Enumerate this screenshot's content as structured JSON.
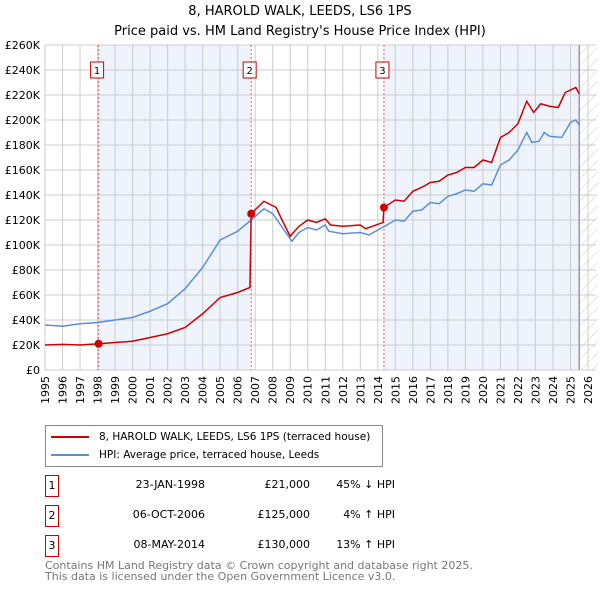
{
  "chart_data": {
    "type": "line",
    "title": "8, HAROLD WALK, LEEDS, LS6 1PS",
    "subtitle": "Price paid vs. HM Land Registry's House Price Index (HPI)",
    "xlim": [
      1995,
      2026
    ],
    "ylim": [
      0,
      260000
    ],
    "x_ticks": [
      "1995",
      "1996",
      "1997",
      "1998",
      "1999",
      "2000",
      "2001",
      "2002",
      "2003",
      "2004",
      "2005",
      "2006",
      "2007",
      "2008",
      "2009",
      "2010",
      "2011",
      "2012",
      "2013",
      "2014",
      "2015",
      "2016",
      "2017",
      "2018",
      "2019",
      "2020",
      "2021",
      "2022",
      "2023",
      "2024",
      "2025",
      "2026"
    ],
    "y_ticks": [
      {
        "v": 0,
        "l": "£0"
      },
      {
        "v": 20000,
        "l": "£20K"
      },
      {
        "v": 40000,
        "l": "£40K"
      },
      {
        "v": 60000,
        "l": "£60K"
      },
      {
        "v": 80000,
        "l": "£80K"
      },
      {
        "v": 100000,
        "l": "£100K"
      },
      {
        "v": 120000,
        "l": "£120K"
      },
      {
        "v": 140000,
        "l": "£140K"
      },
      {
        "v": 160000,
        "l": "£160K"
      },
      {
        "v": 180000,
        "l": "£180K"
      },
      {
        "v": 200000,
        "l": "£200K"
      },
      {
        "v": 220000,
        "l": "£220K"
      },
      {
        "v": 240000,
        "l": "£240K"
      },
      {
        "v": 260000,
        "l": "£260K"
      }
    ],
    "grid": true,
    "series": [
      {
        "name": "8, HAROLD WALK, LEEDS, LS6 1PS (terraced house)",
        "color": "#cc0000",
        "x": [
          1995,
          1996,
          1997,
          1998.06,
          1999,
          2000,
          2001,
          2002,
          2003,
          2004,
          2005,
          2006,
          2006.7,
          2006.77,
          2007.5,
          2008.2,
          2008.6,
          2009,
          2009.5,
          2010,
          2010.5,
          2011,
          2011.3,
          2012,
          2013,
          2013.3,
          2014.3,
          2014.35,
          2015,
          2015.5,
          2016,
          2016.5,
          2017,
          2017.5,
          2018,
          2018.5,
          2019,
          2019.5,
          2020,
          2020.5,
          2021,
          2021.5,
          2022,
          2022.5,
          2022.9,
          2023.3,
          2023.8,
          2024.3,
          2024.7,
          2025.3,
          2025.5
        ],
        "y": [
          20000,
          20500,
          20000,
          21000,
          22000,
          23000,
          26000,
          29000,
          34000,
          45000,
          58000,
          62000,
          66000,
          125000,
          135000,
          130000,
          118000,
          107000,
          115000,
          120000,
          118000,
          121000,
          116000,
          115000,
          116000,
          113000,
          118000,
          130000,
          136000,
          135000,
          143000,
          146000,
          150000,
          151000,
          156000,
          158000,
          162000,
          162000,
          168000,
          166000,
          186000,
          190000,
          197000,
          215000,
          206000,
          213000,
          211000,
          210000,
          222000,
          226000,
          221000
        ]
      },
      {
        "name": "HPI: Average price, terraced house, Leeds",
        "color": "#5b8fd4",
        "x": [
          1995,
          1996,
          1997,
          1998,
          1999,
          2000,
          2001,
          2002,
          2003,
          2004,
          2005,
          2006,
          2006.77,
          2007.5,
          2008,
          2008.5,
          2009.1,
          2009.5,
          2010,
          2010.5,
          2011,
          2011.2,
          2012,
          2013,
          2013.5,
          2014,
          2014.4,
          2015,
          2015.5,
          2016,
          2016.5,
          2017,
          2017.5,
          2018,
          2018.5,
          2019,
          2019.5,
          2020,
          2020.5,
          2021,
          2021.5,
          2022,
          2022.5,
          2022.8,
          2023.2,
          2023.5,
          2023.8,
          2024.5,
          2025,
          2025.3,
          2025.5
        ],
        "y": [
          36000,
          35000,
          37000,
          38000,
          40000,
          42000,
          47000,
          53000,
          65000,
          82000,
          104000,
          111000,
          120000,
          129000,
          125000,
          115000,
          103000,
          110000,
          114000,
          112000,
          116000,
          111000,
          109000,
          110000,
          108000,
          112000,
          115000,
          120000,
          119000,
          127000,
          128000,
          134000,
          133000,
          139000,
          141000,
          144000,
          143000,
          149000,
          148000,
          164000,
          168000,
          176000,
          190000,
          182000,
          183000,
          190000,
          187000,
          186000,
          198000,
          200000,
          196000
        ]
      }
    ],
    "sales": [
      {
        "n": "1",
        "x": 1998.06,
        "y": 21000
      },
      {
        "n": "2",
        "x": 2006.77,
        "y": 125000
      },
      {
        "n": "3",
        "x": 2014.35,
        "y": 130000
      }
    ],
    "shaded": [
      [
        1998.06,
        2006.77
      ],
      [
        2014.35,
        2025.5
      ]
    ],
    "forecast_from": 2025.5
  },
  "legend": {
    "property": "8, HAROLD WALK, LEEDS, LS6 1PS (terraced house)",
    "hpi": "HPI: Average price, terraced house, Leeds"
  },
  "transactions": [
    {
      "n": "1",
      "date": "23-JAN-1998",
      "price": "£21,000",
      "hpi": "45% ↓ HPI"
    },
    {
      "n": "2",
      "date": "06-OCT-2006",
      "price": "£125,000",
      "hpi": "4% ↑ HPI"
    },
    {
      "n": "3",
      "date": "08-MAY-2014",
      "price": "£130,000",
      "hpi": "13% ↑ HPI"
    }
  ],
  "footer": {
    "line1": "Contains HM Land Registry data © Crown copyright and database right 2025.",
    "line2": "This data is licensed under the Open Government Licence v3.0."
  }
}
